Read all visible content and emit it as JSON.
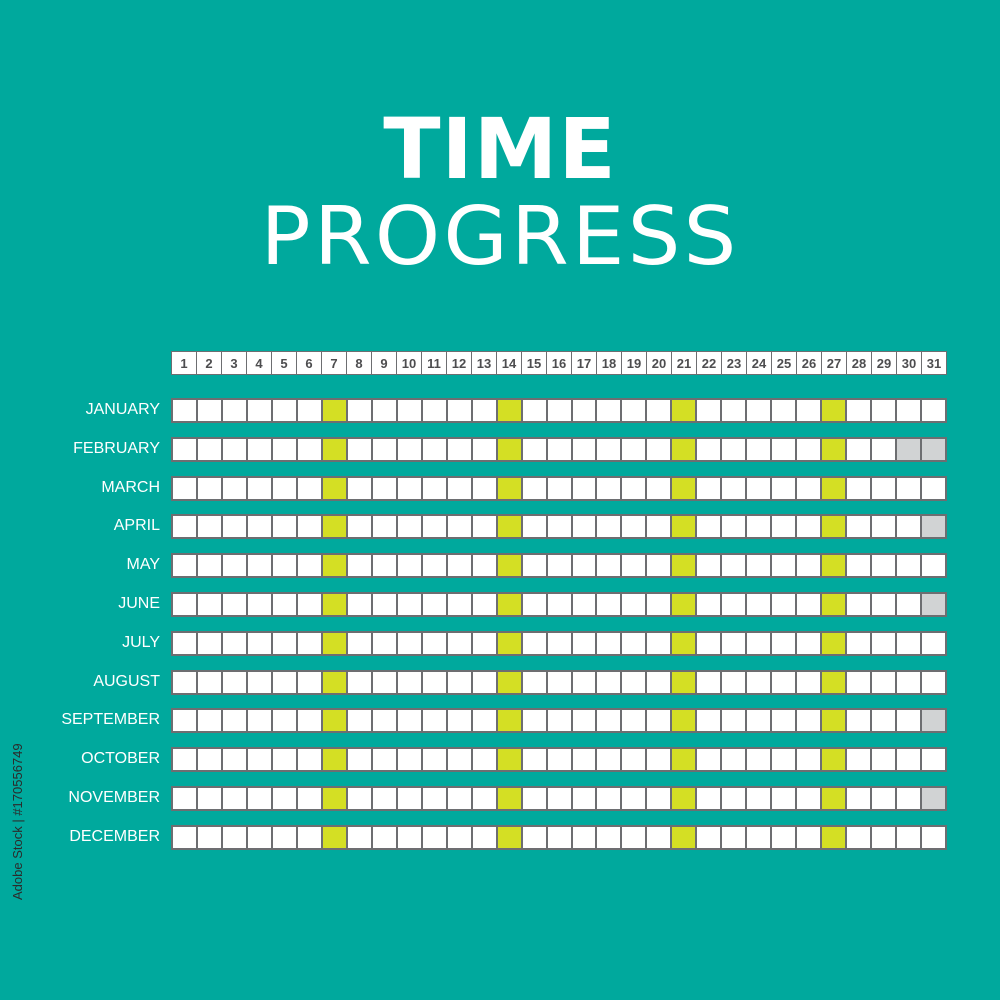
{
  "title": {
    "line1": "TIME",
    "line2": "PROGRESS"
  },
  "days": [
    "1",
    "2",
    "3",
    "4",
    "5",
    "6",
    "7",
    "8",
    "9",
    "10",
    "11",
    "12",
    "13",
    "14",
    "15",
    "16",
    "17",
    "18",
    "19",
    "20",
    "21",
    "22",
    "23",
    "24",
    "25",
    "26",
    "27",
    "28",
    "29",
    "30",
    "31"
  ],
  "highlighted_days": [
    7,
    14,
    21,
    27
  ],
  "months": [
    {
      "name": "JANUARY",
      "days_in_month": 31
    },
    {
      "name": "FEBRUARY",
      "days_in_month": 29
    },
    {
      "name": "MARCH",
      "days_in_month": 31
    },
    {
      "name": "APRIL",
      "days_in_month": 30
    },
    {
      "name": "MAY",
      "days_in_month": 31
    },
    {
      "name": "JUNE",
      "days_in_month": 30
    },
    {
      "name": "JULY",
      "days_in_month": 31
    },
    {
      "name": "AUGUST",
      "days_in_month": 31
    },
    {
      "name": "SEPTEMBER",
      "days_in_month": 30
    },
    {
      "name": "OCTOBER",
      "days_in_month": 31
    },
    {
      "name": "NOVEMBER",
      "days_in_month": 30
    },
    {
      "name": "DECEMBER",
      "days_in_month": 31
    }
  ],
  "watermark": "Adobe Stock | #170556749",
  "colors": {
    "background": "#00a99d",
    "highlight": "#d4df24",
    "unavailable": "#d1d3d4",
    "cell": "#ffffff",
    "border": "#6d6e71"
  }
}
